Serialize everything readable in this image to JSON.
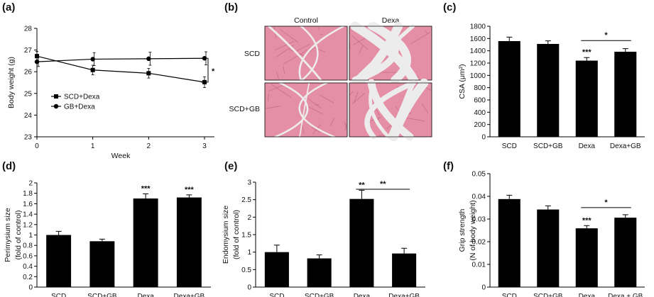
{
  "panel_labels": {
    "a": "(a)",
    "b": "(b)",
    "c": "(c)",
    "d": "(d)",
    "e": "(e)",
    "f": "(f)"
  },
  "histology": {
    "col_labels": [
      "Control",
      "Dexa"
    ],
    "row_labels": [
      "SCD",
      "SCD+GB"
    ],
    "colors": {
      "muscle": "#e58fa6",
      "gap": "#ececec",
      "fiber_edge": "#c9718a"
    }
  },
  "colors": {
    "bars": "#000000",
    "line": "#000000"
  },
  "chart_data": [
    {
      "id": "a",
      "type": "line",
      "xlabel": "Week",
      "ylabel": "Body weight (g)",
      "x": [
        0,
        1,
        2,
        3
      ],
      "xticks": [
        "0",
        "1",
        "2",
        "3"
      ],
      "ylim": [
        23,
        28
      ],
      "yticks": [
        "23",
        "24",
        "25",
        "26",
        "27",
        "28"
      ],
      "series": [
        {
          "name": "SCD+Dexa",
          "marker": "square",
          "values": [
            26.72,
            26.08,
            25.93,
            25.52
          ],
          "errors": [
            0.22,
            0.22,
            0.22,
            0.25
          ]
        },
        {
          "name": "GB+Dexa",
          "marker": "circle",
          "values": [
            26.46,
            26.58,
            26.6,
            26.62
          ],
          "errors": [
            0.22,
            0.3,
            0.3,
            0.3
          ]
        }
      ],
      "legend": "bottom-left",
      "annotation": "*"
    },
    {
      "id": "c",
      "type": "bar",
      "ylabel": "CSA (μm²)",
      "categories": [
        "SCD",
        "SCD+GB",
        "Dexa",
        "Dexa+GB"
      ],
      "values": [
        1558,
        1512,
        1240,
        1385
      ],
      "errors": [
        65,
        50,
        50,
        50
      ],
      "ylim": [
        0,
        1800
      ],
      "yticks": [
        "0",
        "200",
        "400",
        "600",
        "800",
        "1000",
        "1200",
        "1400",
        "1600",
        "1800"
      ],
      "sig": [
        "",
        "",
        "***",
        ""
      ],
      "bracket": {
        "from": 2,
        "to": 3,
        "label": "*"
      }
    },
    {
      "id": "d",
      "type": "bar",
      "ylabel": [
        "Perimysium size",
        "(fold of control)"
      ],
      "categories": [
        "SCD",
        "SCD+GB",
        "Dexa",
        "Dexa+GB"
      ],
      "values": [
        1.0,
        0.88,
        1.7,
        1.72
      ],
      "errors": [
        0.07,
        0.04,
        0.09,
        0.05
      ],
      "ylim": [
        0,
        2
      ],
      "yticks": [
        "0",
        "0.2",
        "0.4",
        "0.6",
        "0.8",
        "1",
        "1.2",
        "1.4",
        "1.6",
        "1.8",
        "2"
      ],
      "sig": [
        "",
        "",
        "***",
        "***"
      ],
      "bracket": null
    },
    {
      "id": "e",
      "type": "bar",
      "ylabel": [
        "Endomysium size",
        "(fold of control)"
      ],
      "categories": [
        "SCD",
        "SCD+GB",
        "Dexa",
        "Dexa+GB"
      ],
      "values": [
        1.0,
        0.82,
        2.52,
        0.96
      ],
      "errors": [
        0.2,
        0.1,
        0.25,
        0.15
      ],
      "ylim": [
        0,
        3
      ],
      "yticks": [
        "0",
        "0.5",
        "1",
        "1.5",
        "2",
        "2.5",
        "3"
      ],
      "sig": [
        "",
        "",
        "**",
        ""
      ],
      "bracket": {
        "from": 2,
        "to": 3,
        "label": "**"
      }
    },
    {
      "id": "f",
      "type": "bar",
      "ylabel": [
        "Grip strength",
        "(N of body weight)"
      ],
      "categories": [
        "SCD",
        "SCD+GB",
        "Dexa",
        "Dexa + GB"
      ],
      "values": [
        0.0388,
        0.0342,
        0.0259,
        0.0306
      ],
      "errors": [
        0.0017,
        0.0016,
        0.0012,
        0.0013
      ],
      "ylim": [
        0,
        0.05
      ],
      "yticks": [
        "0",
        "0.01",
        "0.02",
        "0.03",
        "0.04",
        "0.05"
      ],
      "sig": [
        "",
        "",
        "***",
        ""
      ],
      "bracket": {
        "from": 2,
        "to": 3,
        "label": "*"
      }
    }
  ]
}
